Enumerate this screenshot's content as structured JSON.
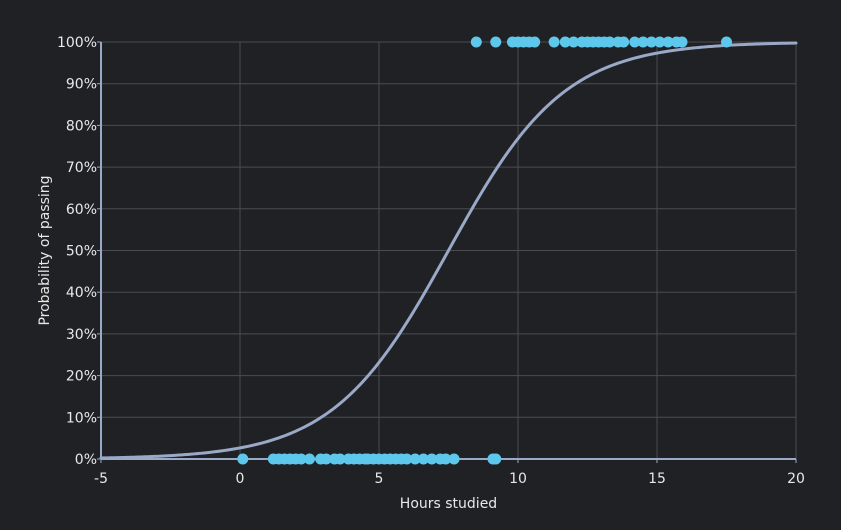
{
  "colors": {
    "background": "#202124",
    "grid": "#4a4c50",
    "axis": "#9aa9c7",
    "curve": "#9aa9c7",
    "points": "#5ec8ec",
    "text": "#e8e8e8"
  },
  "chart_data": {
    "type": "scatter",
    "xlabel": "Hours studied",
    "ylabel": "Probability of passing",
    "xlim": [
      -5,
      20
    ],
    "ylim": [
      0,
      1
    ],
    "xticks": [
      -5,
      0,
      5,
      10,
      15,
      20
    ],
    "xtick_labels": [
      "-5",
      "0",
      "5",
      "10",
      "15",
      "20"
    ],
    "yticks": [
      0,
      0.1,
      0.2,
      0.3,
      0.4,
      0.5,
      0.6,
      0.7,
      0.8,
      0.9,
      1.0
    ],
    "ytick_labels": [
      "0%",
      "10%",
      "20%",
      "30%",
      "40%",
      "50%",
      "60%",
      "70%",
      "80%",
      "90%",
      "100%"
    ],
    "grid": true,
    "series": [
      {
        "kind": "scatter",
        "x": [
          0.1,
          1.2,
          1.4,
          1.6,
          1.8,
          2.0,
          2.2,
          2.5,
          2.9,
          3.1,
          3.4,
          3.6,
          3.9,
          4.1,
          4.3,
          4.5,
          4.6,
          4.8,
          5.0,
          5.2,
          5.4,
          5.6,
          5.8,
          6.0,
          6.3,
          6.6,
          6.9,
          7.2,
          7.4,
          7.7,
          9.1,
          9.2
        ],
        "y": [
          0,
          0,
          0,
          0,
          0,
          0,
          0,
          0,
          0,
          0,
          0,
          0,
          0,
          0,
          0,
          0,
          0,
          0,
          0,
          0,
          0,
          0,
          0,
          0,
          0,
          0,
          0,
          0,
          0,
          0,
          0,
          0
        ]
      },
      {
        "kind": "scatter",
        "x": [
          8.5,
          9.2,
          9.8,
          10.0,
          10.2,
          10.4,
          10.6,
          11.3,
          11.7,
          12.0,
          12.3,
          12.5,
          12.7,
          12.9,
          13.1,
          13.3,
          13.6,
          13.8,
          14.2,
          14.5,
          14.8,
          15.1,
          15.4,
          15.7,
          15.9,
          17.5
        ],
        "y": [
          1,
          1,
          1,
          1,
          1,
          1,
          1,
          1,
          1,
          1,
          1,
          1,
          1,
          1,
          1,
          1,
          1,
          1,
          1,
          1,
          1,
          1,
          1,
          1,
          1,
          1
        ]
      },
      {
        "kind": "line",
        "function": "logistic",
        "x0": 7.5,
        "k": 0.48,
        "x_range": [
          -5,
          20
        ]
      }
    ]
  }
}
